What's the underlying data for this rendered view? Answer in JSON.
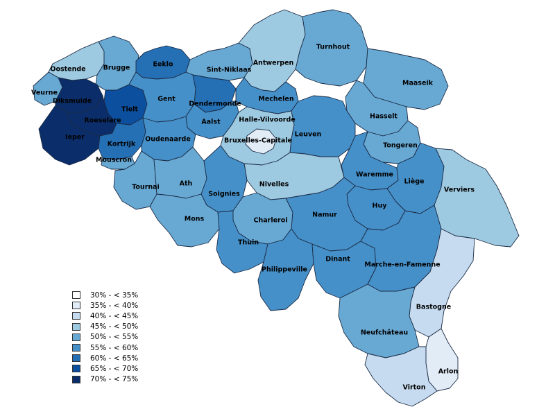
{
  "legend": [
    {
      "label": "30% - < 35%",
      "color": "#ffffff"
    },
    {
      "label": "35% - < 40%",
      "color": "#e2ecf7"
    },
    {
      "label": "40% - < 45%",
      "color": "#c6dbef"
    },
    {
      "label": "45% - < 50%",
      "color": "#9ecae1"
    },
    {
      "label": "50% - < 55%",
      "color": "#68a9d4"
    },
    {
      "label": "55% - < 60%",
      "color": "#4690c9"
    },
    {
      "label": "60% - < 65%",
      "color": "#2570b5"
    },
    {
      "label": "65% - < 70%",
      "color": "#0c4f9e"
    },
    {
      "label": "70% - < 75%",
      "color": "#0b2e6b"
    }
  ],
  "districts": [
    {
      "name": "Oostende",
      "class": 3
    },
    {
      "name": "Brugge",
      "class": 4
    },
    {
      "name": "Eeklo",
      "class": 6
    },
    {
      "name": "Sint-Niklaas",
      "class": 4
    },
    {
      "name": "Antwerpen",
      "class": 3
    },
    {
      "name": "Turnhout",
      "class": 4
    },
    {
      "name": "Maaseik",
      "class": 4
    },
    {
      "name": "Veurne",
      "class": 4
    },
    {
      "name": "Diksmuide",
      "class": 8
    },
    {
      "name": "Tielt",
      "class": 7
    },
    {
      "name": "Gent",
      "class": 5
    },
    {
      "name": "Dendermonde",
      "class": 6
    },
    {
      "name": "Mechelen",
      "class": 5
    },
    {
      "name": "Hasselt",
      "class": 4
    },
    {
      "name": "Roeselare",
      "class": 8
    },
    {
      "name": "Aalst",
      "class": 5
    },
    {
      "name": "Halle-Vilvoorde",
      "class": 3
    },
    {
      "name": "Leuven",
      "class": 5
    },
    {
      "name": "Ieper",
      "class": 8
    },
    {
      "name": "Kortrijk",
      "class": 6
    },
    {
      "name": "Oudenaarde",
      "class": 5
    },
    {
      "name": "Bruxelles-Capitale",
      "class": 1
    },
    {
      "name": "Tongeren",
      "class": 4
    },
    {
      "name": "Mouscron",
      "class": 4
    },
    {
      "name": "Waremme",
      "class": 5
    },
    {
      "name": "Liège",
      "class": 5
    },
    {
      "name": "Tournai",
      "class": 4
    },
    {
      "name": "Ath",
      "class": 4
    },
    {
      "name": "Nivelles",
      "class": 3
    },
    {
      "name": "Verviers",
      "class": 3
    },
    {
      "name": "Soignies",
      "class": 5
    },
    {
      "name": "Huy",
      "class": 5
    },
    {
      "name": "Mons",
      "class": 4
    },
    {
      "name": "Charleroi",
      "class": 4
    },
    {
      "name": "Namur",
      "class": 5
    },
    {
      "name": "Thuin",
      "class": 5
    },
    {
      "name": "Philippeville",
      "class": 5
    },
    {
      "name": "Dinant",
      "class": 5
    },
    {
      "name": "Marche-en-Famenne",
      "class": 5
    },
    {
      "name": "Bastogne",
      "class": 2
    },
    {
      "name": "Neufchâteau",
      "class": 4
    },
    {
      "name": "Arlon",
      "class": 1
    },
    {
      "name": "Virton",
      "class": 2
    }
  ]
}
